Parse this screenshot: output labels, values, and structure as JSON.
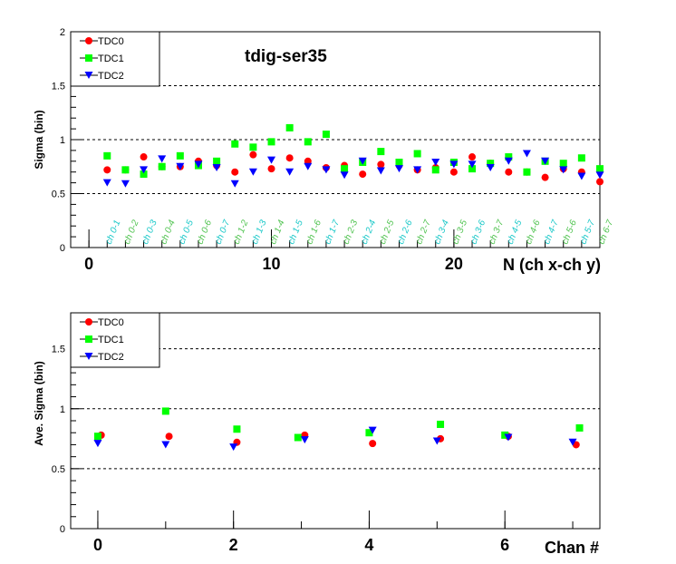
{
  "chart_data": [
    {
      "type": "scatter",
      "title": "tdig-ser35",
      "xlabel": "N (ch x-ch y)",
      "ylabel": "Sigma (bin)",
      "xlim": [
        -1,
        28
      ],
      "ylim": [
        0,
        2
      ],
      "yticks": [
        "0",
        "0.5",
        "1",
        "1.5",
        "2"
      ],
      "xticks": [
        "0",
        "10",
        "20"
      ],
      "xtick_values": [
        0,
        10,
        20
      ],
      "grid": "horizontal dashed at y ticks",
      "legend_position": "top-left",
      "category_labels": [
        "ch 0-1",
        "ch 0-2",
        "ch 0-3",
        "ch 0-4",
        "ch 0-5",
        "ch 0-6",
        "ch 0-7",
        "ch 1-2",
        "ch 1-3",
        "ch 1-4",
        "ch 1-5",
        "ch 1-6",
        "ch 1-7",
        "ch 2-3",
        "ch 2-4",
        "ch 2-5",
        "ch 2-6",
        "ch 2-7",
        "ch 3-4",
        "ch 3-5",
        "ch 3-6",
        "ch 3-7",
        "ch 4-5",
        "ch 4-6",
        "ch 4-7",
        "ch 5-6",
        "ch 5-7",
        "ch 6-7"
      ],
      "category_colors": [
        "#19c8c8",
        "#4fc34f"
      ],
      "series": [
        {
          "name": "TDC0",
          "marker": "circle",
          "color": "#ff0000",
          "x": [
            1,
            2,
            3,
            4,
            5,
            6,
            7,
            8,
            9,
            10,
            11,
            12,
            13,
            14,
            15,
            16,
            17,
            18,
            19,
            20,
            21,
            22,
            23,
            24,
            25,
            26,
            27,
            28
          ],
          "y": [
            0.72,
            0.72,
            0.84,
            0.75,
            0.75,
            0.8,
            0.76,
            0.7,
            0.86,
            0.73,
            0.83,
            0.8,
            0.74,
            0.76,
            0.68,
            0.77,
            0.76,
            0.72,
            0.74,
            0.7,
            0.84,
            0.78,
            0.7,
            0.7,
            0.65,
            0.73,
            0.7,
            0.61
          ]
        },
        {
          "name": "TDC1",
          "marker": "square",
          "color": "#00ff00",
          "x": [
            1,
            2,
            3,
            4,
            5,
            6,
            7,
            8,
            9,
            10,
            11,
            12,
            13,
            14,
            15,
            16,
            17,
            18,
            19,
            20,
            21,
            22,
            23,
            24,
            25,
            26,
            27,
            28
          ],
          "y": [
            0.85,
            0.72,
            0.68,
            0.75,
            0.85,
            0.76,
            0.8,
            0.96,
            0.93,
            0.98,
            1.11,
            0.98,
            1.05,
            0.73,
            0.79,
            0.89,
            0.79,
            0.87,
            0.72,
            0.79,
            0.73,
            0.78,
            0.84,
            0.7,
            0.8,
            0.78,
            0.83,
            0.73
          ]
        },
        {
          "name": "TDC2",
          "marker": "triangle-down",
          "color": "#0000ff",
          "x": [
            1,
            2,
            3,
            4,
            5,
            6,
            7,
            8,
            9,
            10,
            11,
            12,
            13,
            14,
            15,
            16,
            17,
            18,
            19,
            20,
            21,
            22,
            23,
            24,
            25,
            26,
            27,
            28
          ],
          "y": [
            0.6,
            0.59,
            0.72,
            0.82,
            0.75,
            0.77,
            0.74,
            0.59,
            0.7,
            0.81,
            0.7,
            0.75,
            0.72,
            0.67,
            0.8,
            0.71,
            0.73,
            0.72,
            0.79,
            0.77,
            0.77,
            0.74,
            0.8,
            0.87,
            0.8,
            0.72,
            0.66,
            0.67
          ]
        }
      ]
    },
    {
      "type": "scatter",
      "xlabel": "Chan #",
      "ylabel": "Ave. Sigma (bin)",
      "xlim": [
        -0.4,
        7.4
      ],
      "ylim": [
        0,
        1.8
      ],
      "yticks": [
        "0",
        "0.5",
        "1",
        "1.5"
      ],
      "ytick_values": [
        0,
        0.5,
        1,
        1.5
      ],
      "xticks": [
        "0",
        "2",
        "4",
        "6"
      ],
      "xtick_values": [
        0,
        2,
        4,
        6
      ],
      "grid": "horizontal dashed at y ticks",
      "legend_position": "top-left",
      "series": [
        {
          "name": "TDC0",
          "marker": "circle",
          "color": "#ff0000",
          "x": [
            0.05,
            1.05,
            2.05,
            3.05,
            4.05,
            5.05,
            6.05,
            7.05
          ],
          "y": [
            0.78,
            0.77,
            0.72,
            0.78,
            0.71,
            0.75,
            0.77,
            0.7
          ]
        },
        {
          "name": "TDC1",
          "marker": "square",
          "color": "#00ff00",
          "x": [
            0,
            1,
            2.05,
            2.95,
            4,
            5.05,
            6,
            7.1
          ],
          "y": [
            0.77,
            0.98,
            0.83,
            0.76,
            0.8,
            0.87,
            0.78,
            0.84
          ]
        },
        {
          "name": "TDC2",
          "marker": "triangle-down",
          "color": "#0000ff",
          "x": [
            0,
            1,
            2,
            3.05,
            4.05,
            5,
            6.05,
            7
          ],
          "y": [
            0.71,
            0.7,
            0.68,
            0.74,
            0.82,
            0.73,
            0.76,
            0.72
          ]
        }
      ]
    }
  ]
}
